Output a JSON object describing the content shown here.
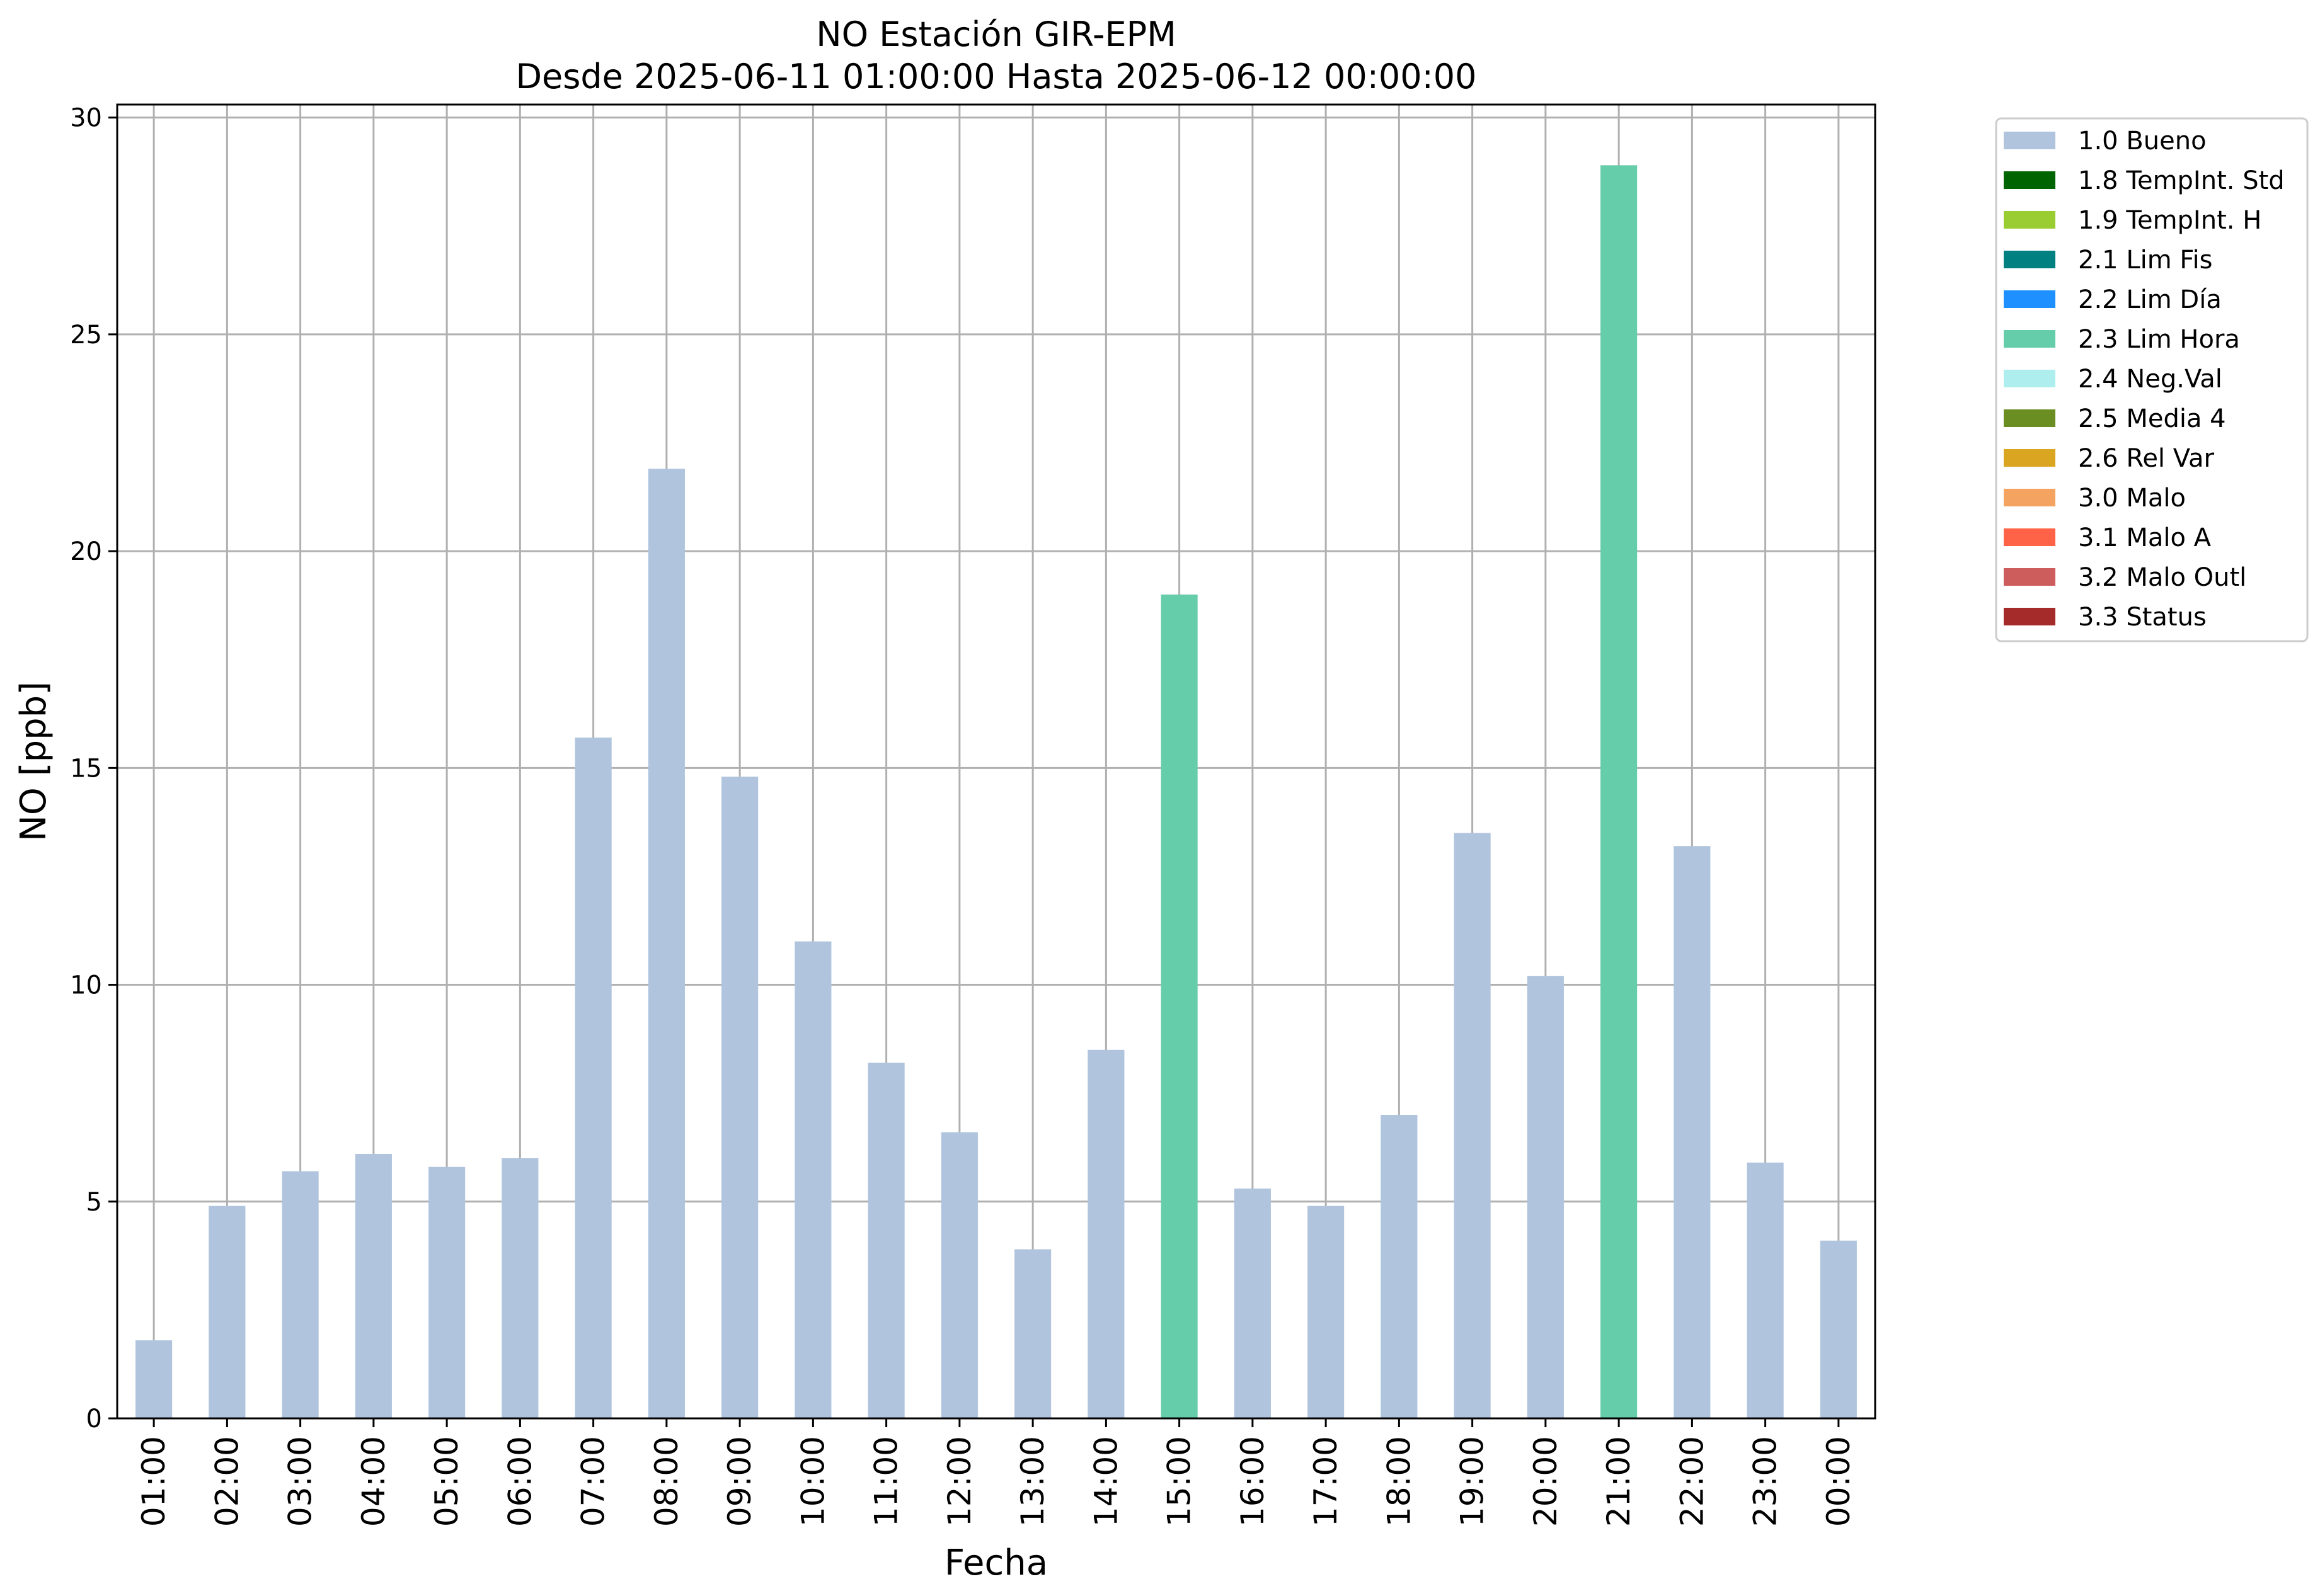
{
  "chart_data": {
    "type": "bar",
    "title": "NO Estación GIR-EPM",
    "subtitle": "Desde 2025-06-11 01:00:00 Hasta 2025-06-12 00:00:00",
    "xlabel": "Fecha",
    "ylabel": "NO [ppb]",
    "ylim": [
      0,
      30.3
    ],
    "yticks": [
      0,
      5,
      10,
      15,
      20,
      25,
      30
    ],
    "grid": true,
    "legend_position": "outside top-right",
    "categories": [
      "01:00",
      "02:00",
      "03:00",
      "04:00",
      "05:00",
      "06:00",
      "07:00",
      "08:00",
      "09:00",
      "10:00",
      "11:00",
      "12:00",
      "13:00",
      "14:00",
      "15:00",
      "16:00",
      "17:00",
      "18:00",
      "19:00",
      "20:00",
      "21:00",
      "22:00",
      "23:00",
      "00:00"
    ],
    "values": [
      1.8,
      4.9,
      5.7,
      6.1,
      5.8,
      6.0,
      15.7,
      21.9,
      14.8,
      11.0,
      8.2,
      6.6,
      3.9,
      8.5,
      19.0,
      5.3,
      4.9,
      7.0,
      13.5,
      10.2,
      28.9,
      13.2,
      5.9,
      4.1
    ],
    "flags": [
      "1.0 Bueno",
      "1.0 Bueno",
      "1.0 Bueno",
      "1.0 Bueno",
      "1.0 Bueno",
      "1.0 Bueno",
      "1.0 Bueno",
      "1.0 Bueno",
      "1.0 Bueno",
      "1.0 Bueno",
      "1.0 Bueno",
      "1.0 Bueno",
      "1.0 Bueno",
      "1.0 Bueno",
      "2.3 Lim Hora",
      "1.0 Bueno",
      "1.0 Bueno",
      "1.0 Bueno",
      "1.0 Bueno",
      "1.0 Bueno",
      "2.3 Lim Hora",
      "1.0 Bueno",
      "1.0 Bueno",
      "1.0 Bueno"
    ],
    "legend": [
      {
        "name": "1.0 Bueno",
        "color": "#b0c4de"
      },
      {
        "name": "1.8 TempInt. Std",
        "color": "#006400"
      },
      {
        "name": "1.9 TempInt. H",
        "color": "#9acd32"
      },
      {
        "name": "2.1 Lim Fis",
        "color": "#008080"
      },
      {
        "name": "2.2 Lim Día",
        "color": "#1e90ff"
      },
      {
        "name": "2.3 Lim Hora",
        "color": "#66cdaa"
      },
      {
        "name": "2.4 Neg.Val",
        "color": "#afeeee"
      },
      {
        "name": "2.5 Media 4",
        "color": "#6b8e23"
      },
      {
        "name": "2.6 Rel Var",
        "color": "#daa520"
      },
      {
        "name": "3.0 Malo",
        "color": "#f4a460"
      },
      {
        "name": "3.1 Malo A",
        "color": "#ff6347"
      },
      {
        "name": "3.2 Malo Outl",
        "color": "#cd5c5c"
      },
      {
        "name": "3.3 Status",
        "color": "#a52a2a"
      }
    ]
  }
}
